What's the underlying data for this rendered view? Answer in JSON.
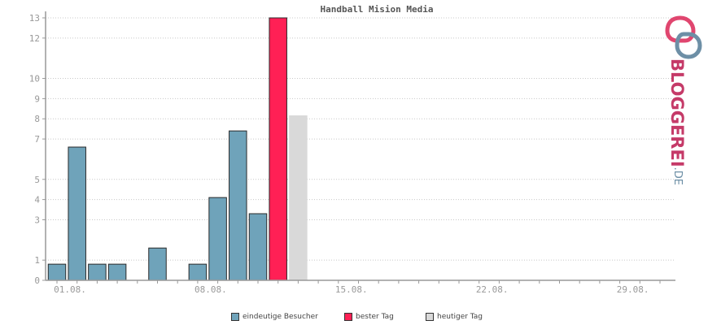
{
  "chart_data": {
    "type": "bar",
    "title": "Handball Mision Media",
    "x_ticks": [
      "01.08.",
      "08.08.",
      "15.08.",
      "22.08.",
      "29.08."
    ],
    "y_ticks": [
      0,
      1,
      3,
      4,
      5,
      7,
      8,
      9,
      10,
      12,
      13
    ],
    "ylim": [
      0,
      13
    ],
    "days": 31,
    "grid": true,
    "legend_position": "bottom",
    "series": [
      {
        "name": "eindeutige Besucher",
        "color": "#6fa3ba",
        "points": [
          {
            "day": 1,
            "value": 0.8
          },
          {
            "day": 2,
            "value": 6.6
          },
          {
            "day": 3,
            "value": 0.8
          },
          {
            "day": 4,
            "value": 0.8
          },
          {
            "day": 6,
            "value": 1.6
          },
          {
            "day": 8,
            "value": 0.8
          },
          {
            "day": 9,
            "value": 4.1
          },
          {
            "day": 10,
            "value": 7.4
          },
          {
            "day": 11,
            "value": 3.3
          }
        ]
      },
      {
        "name": "bester Tag",
        "color": "#ff2055",
        "points": [
          {
            "day": 12,
            "value": 13
          }
        ]
      },
      {
        "name": "heutiger Tag",
        "color": "#d9d9d9",
        "points": [
          {
            "day": 13,
            "value": 8.15
          }
        ]
      }
    ]
  },
  "logo": {
    "brand": "BLOGGEREI",
    "suffix": ".DE",
    "colors": [
      "#c53a68",
      "#6d8fa6"
    ]
  }
}
